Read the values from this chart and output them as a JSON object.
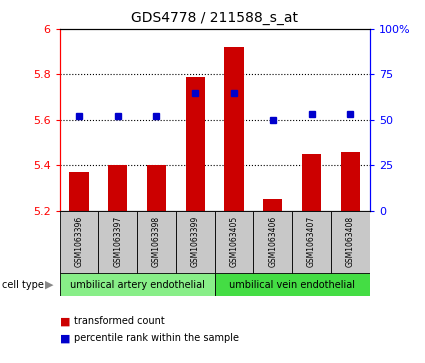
{
  "title": "GDS4778 / 211588_s_at",
  "samples": [
    "GSM1063396",
    "GSM1063397",
    "GSM1063398",
    "GSM1063399",
    "GSM1063405",
    "GSM1063406",
    "GSM1063407",
    "GSM1063408"
  ],
  "transformed_count": [
    5.37,
    5.4,
    5.4,
    5.79,
    5.92,
    5.25,
    5.45,
    5.46
  ],
  "percentile_rank": [
    52,
    52,
    52,
    65,
    65,
    50,
    53,
    53
  ],
  "ylim_left": [
    5.2,
    6.0
  ],
  "ylim_right": [
    0,
    100
  ],
  "yticks_left": [
    5.2,
    5.4,
    5.6,
    5.8,
    6.0
  ],
  "ytick_labels_left": [
    "5.2",
    "5.4",
    "5.6",
    "5.8",
    "6"
  ],
  "yticks_right": [
    0,
    25,
    50,
    75,
    100
  ],
  "ytick_labels_right": [
    "0",
    "25",
    "50",
    "75",
    "100%"
  ],
  "grid_values": [
    5.4,
    5.6,
    5.8
  ],
  "bar_color": "#cc0000",
  "dot_color": "#0000cc",
  "bar_bottom": 5.2,
  "cell_type_groups": [
    {
      "label": "umbilical artery endothelial",
      "count": 4,
      "color": "#66ee66"
    },
    {
      "label": "umbilical vein endothelial",
      "count": 4,
      "color": "#44dd44"
    }
  ],
  "cell_type_label": "cell type",
  "legend_red": "transformed count",
  "legend_blue": "percentile rank within the sample",
  "sample_box_color": "#c8c8c8",
  "bar_width": 0.5
}
